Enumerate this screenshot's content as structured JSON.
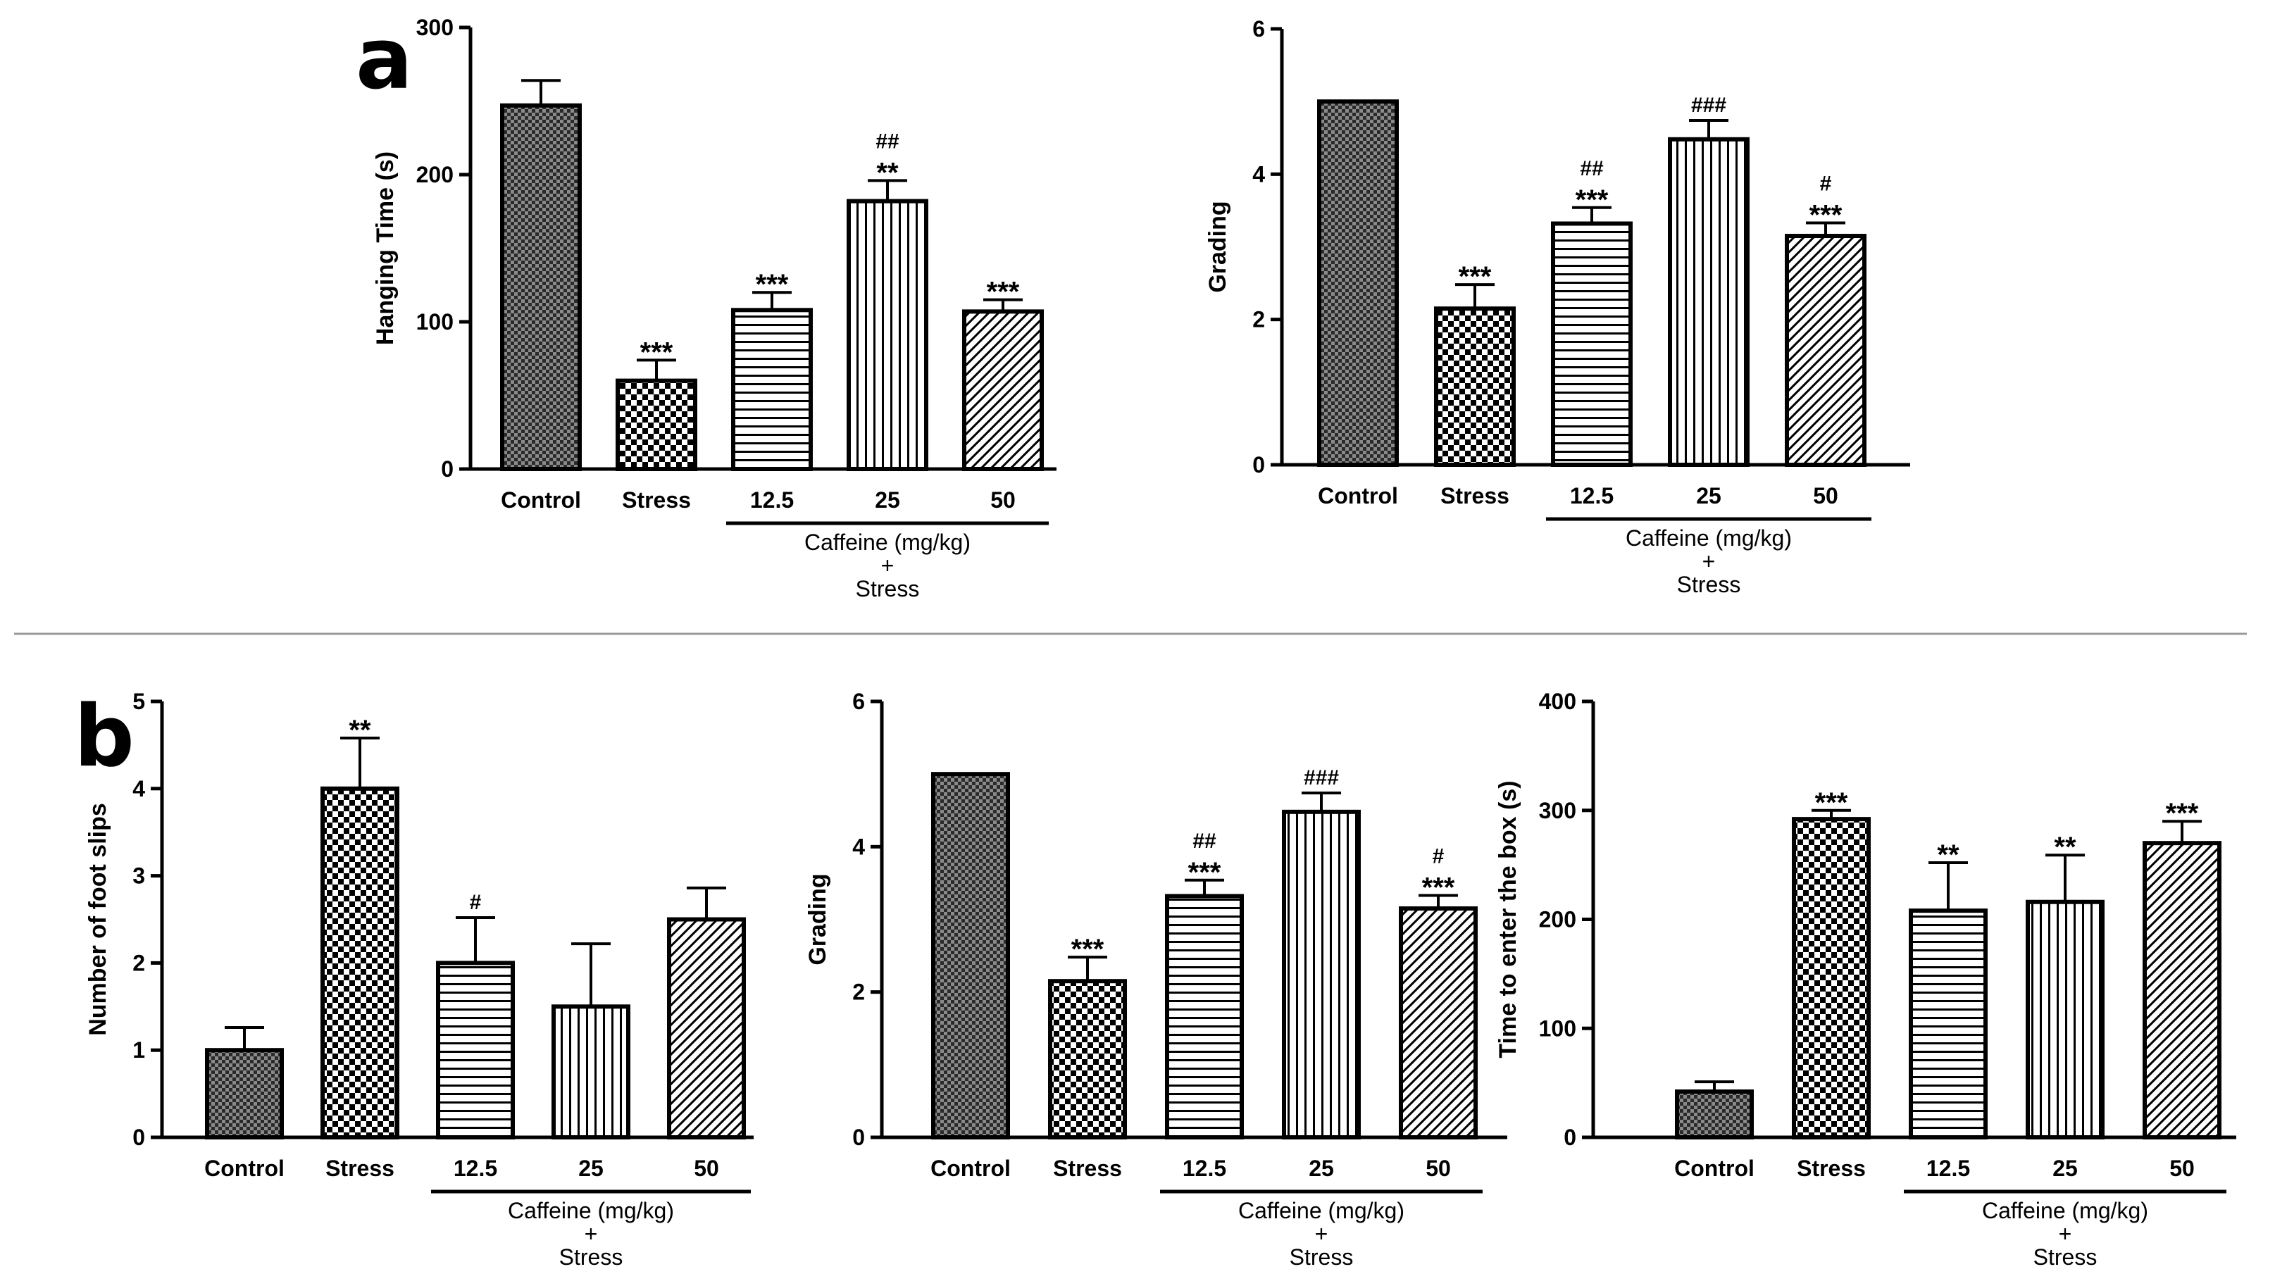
{
  "panel_labels": [
    "a",
    "b"
  ],
  "chart_data": [
    {
      "type": "bar",
      "panel": "a",
      "title": "",
      "xlabel": "",
      "ylabel": "Hanging Time (s)",
      "ylim": [
        0,
        300
      ],
      "yticks": [
        "0",
        "100",
        "200",
        "300"
      ],
      "categories": [
        "Control",
        "Stress",
        "12.5",
        "25",
        "50"
      ],
      "values": [
        247,
        60,
        108,
        182,
        107
      ],
      "errors": [
        17,
        14,
        12,
        14,
        8
      ],
      "patterns": [
        "crosshatch",
        "checker",
        "horizontal",
        "vertical",
        "diagonal"
      ],
      "significance": [
        {
          "category": "Stress",
          "lines": [
            "***"
          ]
        },
        {
          "category": "12.5",
          "lines": [
            "***"
          ]
        },
        {
          "category": "25",
          "lines": [
            "##",
            "**"
          ]
        },
        {
          "category": "50",
          "lines": [
            "***"
          ]
        }
      ],
      "group_label": [
        "Caffeine (mg/kg)",
        "+",
        "Stress"
      ],
      "group_span": [
        "12.5",
        "50"
      ],
      "grid": false
    },
    {
      "type": "bar",
      "panel": "a",
      "title": "",
      "xlabel": "",
      "ylabel": "Grading",
      "ylim": [
        0,
        6
      ],
      "yticks": [
        "0",
        "2",
        "4",
        "6"
      ],
      "categories": [
        "Control",
        "Stress",
        "12.5",
        "25",
        "50"
      ],
      "values": [
        5.0,
        2.15,
        3.32,
        4.48,
        3.15
      ],
      "errors": [
        0,
        0.33,
        0.22,
        0.26,
        0.18
      ],
      "patterns": [
        "crosshatch",
        "checker",
        "horizontal",
        "vertical",
        "diagonal"
      ],
      "significance": [
        {
          "category": "Stress",
          "lines": [
            "***"
          ]
        },
        {
          "category": "12.5",
          "lines": [
            "##",
            "***"
          ]
        },
        {
          "category": "25",
          "lines": [
            "###"
          ]
        },
        {
          "category": "50",
          "lines": [
            "#",
            "***"
          ]
        }
      ],
      "group_label": [
        "Caffeine (mg/kg)",
        "+",
        "Stress"
      ],
      "group_span": [
        "12.5",
        "50"
      ],
      "grid": false
    },
    {
      "type": "bar",
      "panel": "b",
      "title": "",
      "xlabel": "",
      "ylabel": "Number of foot slips",
      "ylim": [
        0,
        5
      ],
      "yticks": [
        "0",
        "1",
        "2",
        "3",
        "4",
        "5"
      ],
      "categories": [
        "Control",
        "Stress",
        "12.5",
        "25",
        "50"
      ],
      "values": [
        1.0,
        4.0,
        2.0,
        1.5,
        2.5
      ],
      "errors": [
        0.26,
        0.58,
        0.52,
        0.72,
        0.36
      ],
      "patterns": [
        "crosshatch",
        "checker",
        "horizontal",
        "vertical",
        "diagonal"
      ],
      "significance": [
        {
          "category": "Stress",
          "lines": [
            "**"
          ]
        },
        {
          "category": "12.5",
          "lines": [
            "#"
          ]
        }
      ],
      "group_label": [
        "Caffeine (mg/kg)",
        "+",
        "Stress"
      ],
      "group_span": [
        "12.5",
        "50"
      ],
      "grid": false
    },
    {
      "type": "bar",
      "panel": "b",
      "title": "",
      "xlabel": "",
      "ylabel": "Grading",
      "ylim": [
        0,
        6
      ],
      "yticks": [
        "0",
        "2",
        "4",
        "6"
      ],
      "categories": [
        "Control",
        "Stress",
        "12.5",
        "25",
        "50"
      ],
      "values": [
        5.0,
        2.15,
        3.32,
        4.48,
        3.15
      ],
      "errors": [
        0,
        0.33,
        0.22,
        0.26,
        0.18
      ],
      "patterns": [
        "crosshatch",
        "checker",
        "horizontal",
        "vertical",
        "diagonal"
      ],
      "significance": [
        {
          "category": "Stress",
          "lines": [
            "***"
          ]
        },
        {
          "category": "12.5",
          "lines": [
            "##",
            "***"
          ]
        },
        {
          "category": "25",
          "lines": [
            "###"
          ]
        },
        {
          "category": "50",
          "lines": [
            "#",
            "***"
          ]
        }
      ],
      "group_label": [
        "Caffeine (mg/kg)",
        "+",
        "Stress"
      ],
      "group_span": [
        "12.5",
        "50"
      ],
      "grid": false
    },
    {
      "type": "bar",
      "panel": "b",
      "title": "",
      "xlabel": "",
      "ylabel": "Time to enter the box (s)",
      "ylim": [
        0,
        400
      ],
      "yticks": [
        "0",
        "100",
        "200",
        "300",
        "400"
      ],
      "categories": [
        "Control",
        "Stress",
        "12.5",
        "25",
        "50"
      ],
      "values": [
        42,
        292,
        208,
        216,
        270
      ],
      "errors": [
        9,
        8,
        44,
        43,
        20
      ],
      "patterns": [
        "crosshatch",
        "checker",
        "horizontal",
        "vertical",
        "diagonal"
      ],
      "significance": [
        {
          "category": "Stress",
          "lines": [
            "***"
          ]
        },
        {
          "category": "12.5",
          "lines": [
            "**"
          ]
        },
        {
          "category": "25",
          "lines": [
            "**"
          ]
        },
        {
          "category": "50",
          "lines": [
            "***"
          ]
        }
      ],
      "group_label": [
        "Caffeine (mg/kg)",
        "+",
        "Stress"
      ],
      "group_span": [
        "12.5",
        "50"
      ],
      "grid": false
    }
  ]
}
